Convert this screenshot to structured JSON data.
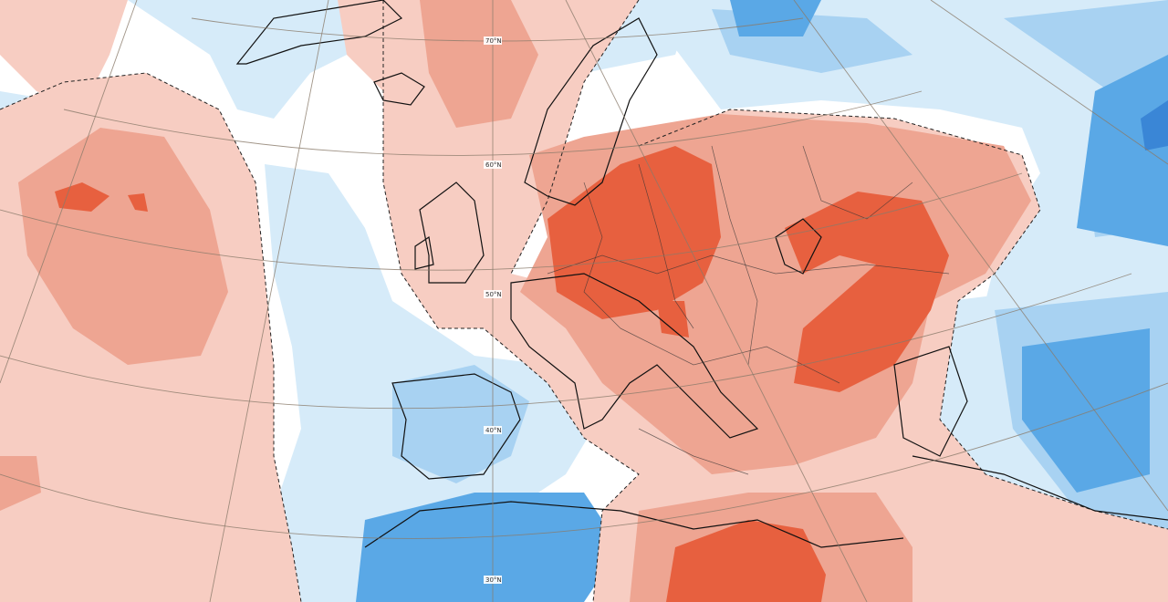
{
  "map": {
    "latitude_labels": [
      "70°N",
      "60°N",
      "50°N",
      "40°N",
      "30°N"
    ],
    "colors": {
      "warm_light": "#f7cdc2",
      "warm_medium": "#eea592",
      "warm_strong": "#e7603f",
      "neutral": "#ffffff",
      "cool_light": "#d6ebf9",
      "cool_medium": "#a8d2f2",
      "cool_strong": "#5aa8e6",
      "cool_deep": "#3a86d6"
    }
  }
}
